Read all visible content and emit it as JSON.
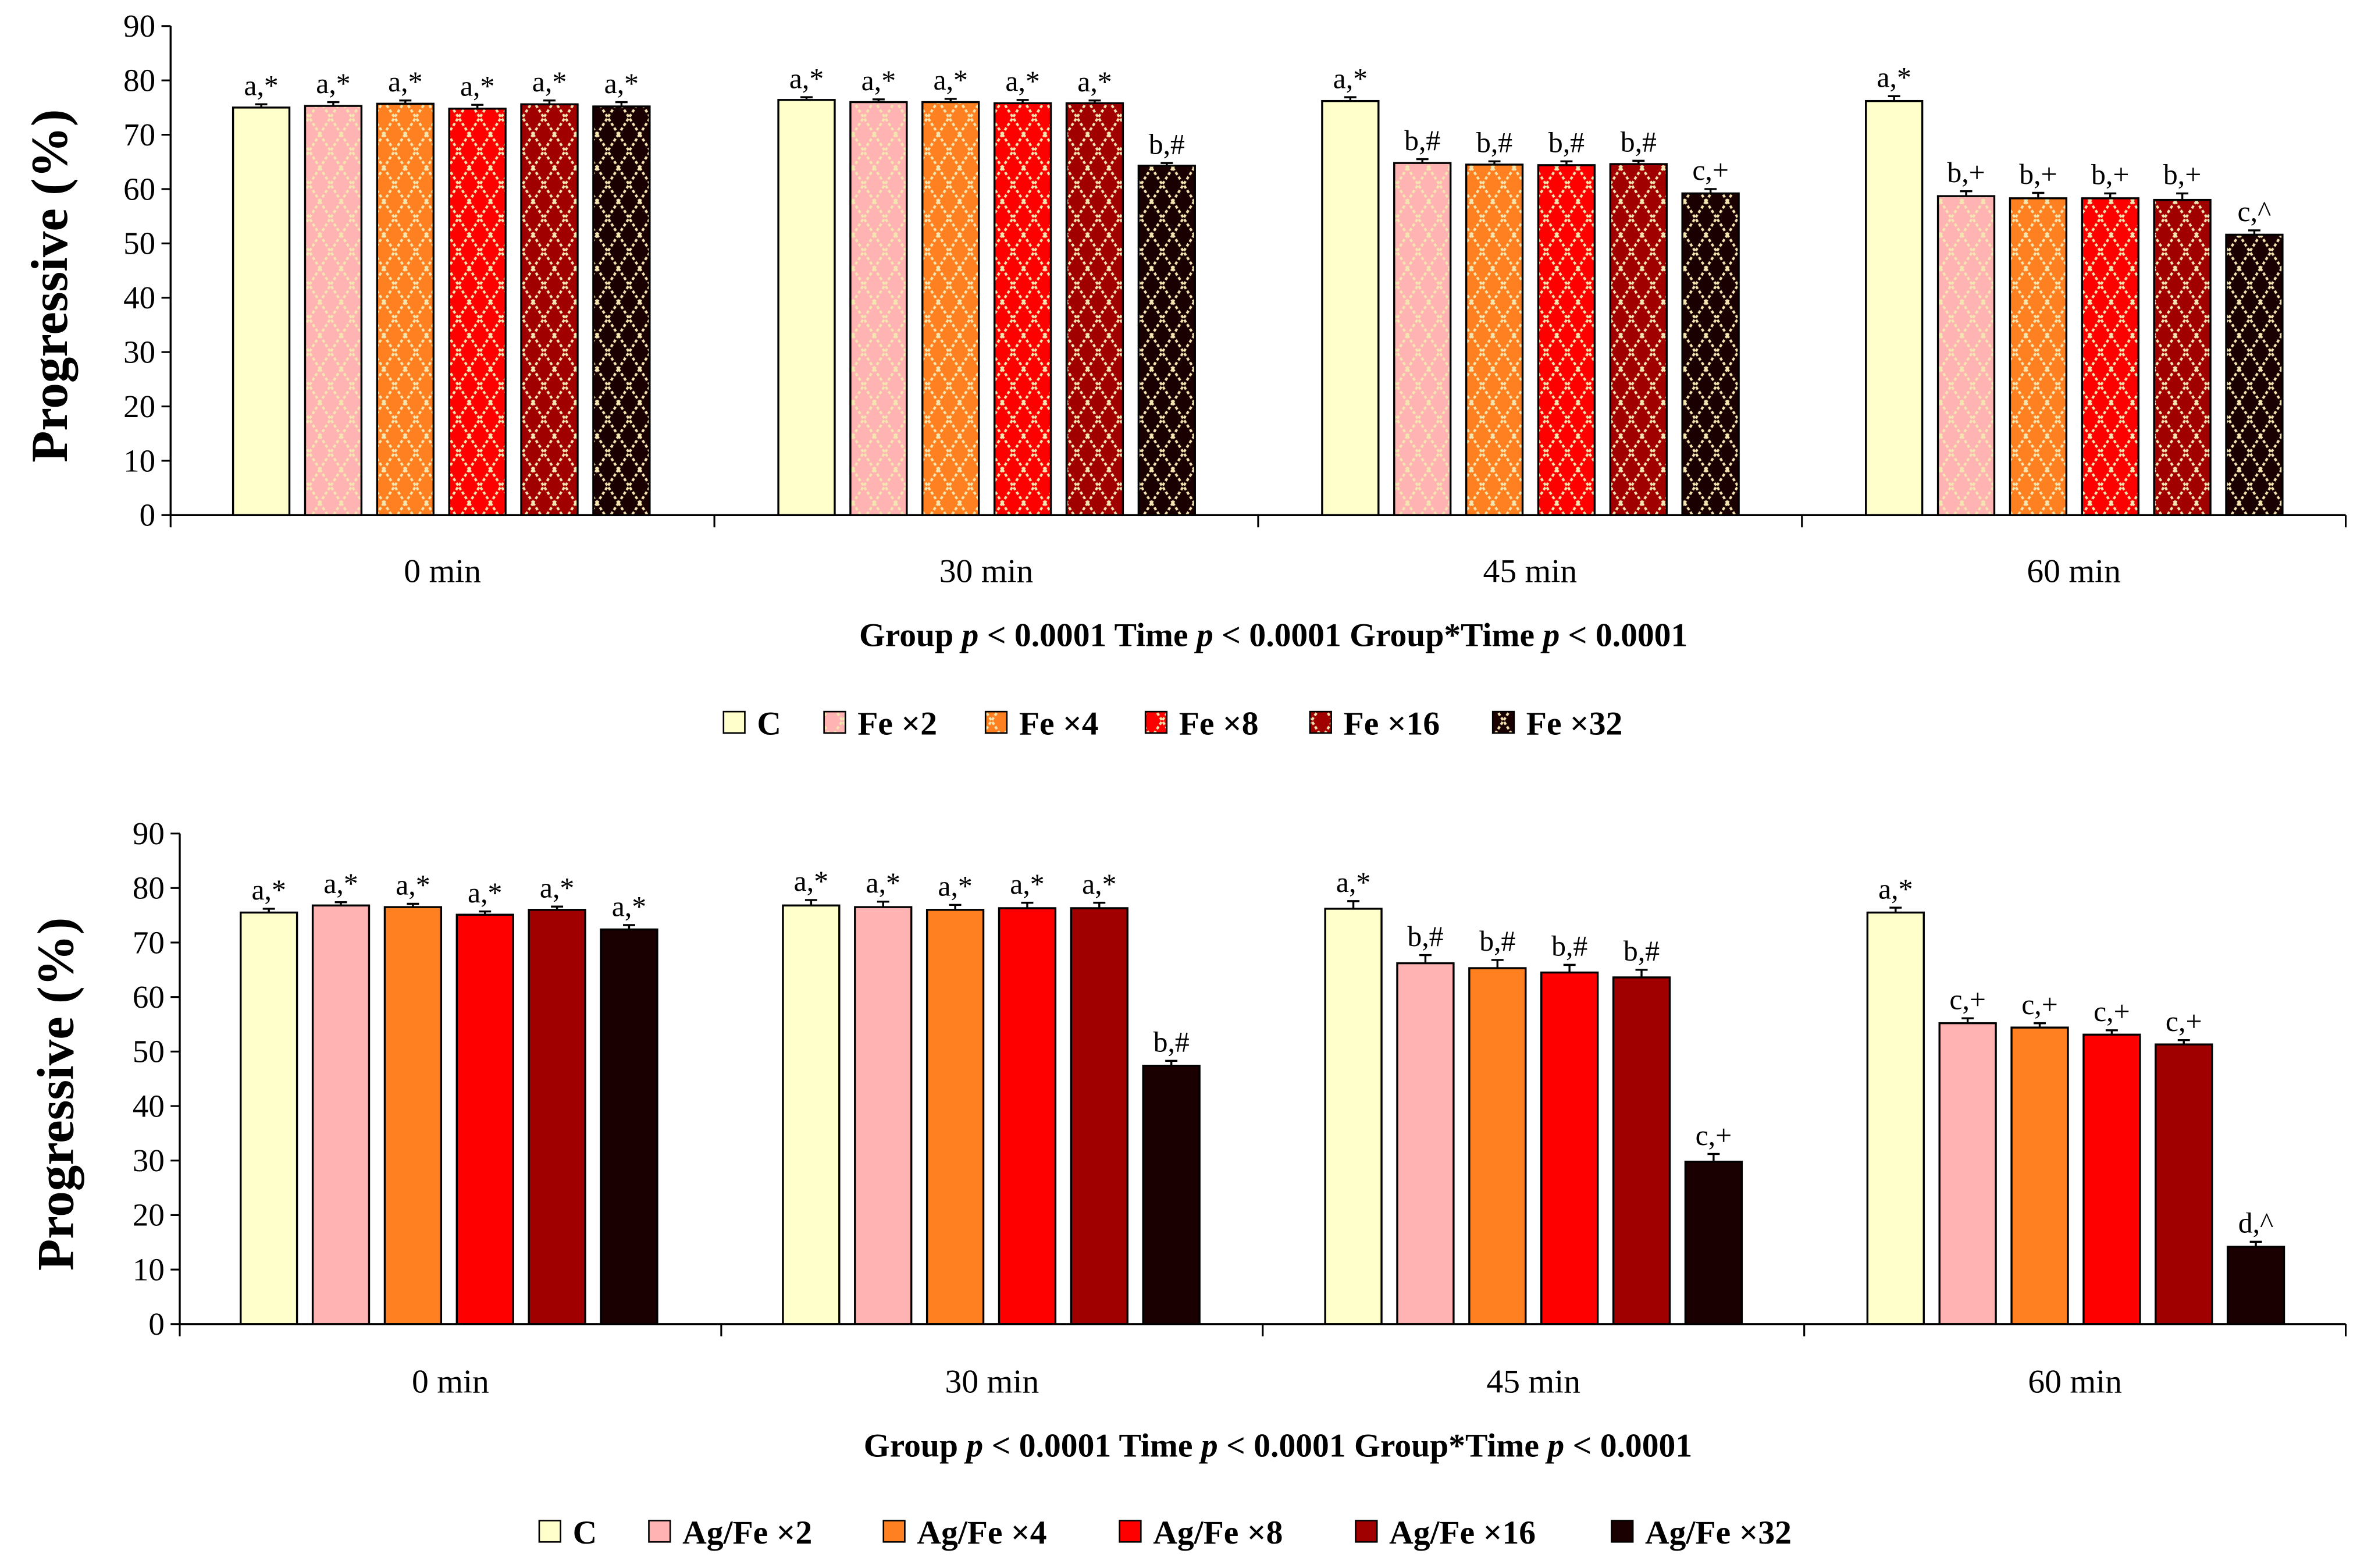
{
  "chart_data": [
    {
      "type": "bar",
      "ylabel": "Progressive (%)",
      "ylim": [
        0,
        90
      ],
      "yticks": [
        0,
        10,
        20,
        30,
        40,
        50,
        60,
        70,
        80,
        90
      ],
      "categories": [
        "0 min",
        "30 min",
        "45 min",
        "60 min"
      ],
      "footnote": "Group p < 0.0001 Time p < 0.0001 Group*Time p < 0.0001",
      "patterned": true,
      "legend_position": "bottom",
      "series": [
        {
          "name": "C",
          "color": "#ffffcc",
          "values": [
            75.0,
            76.4,
            76.2,
            76.2
          ],
          "errors": [
            0.6,
            0.5,
            0.7,
            0.9
          ],
          "labels": [
            "a,*",
            "a,*",
            "a,*",
            "a,*"
          ]
        },
        {
          "name": "Fe ×2",
          "color": "#ffb3b3",
          "values": [
            75.3,
            76.0,
            64.8,
            58.7
          ],
          "errors": [
            0.7,
            0.5,
            0.7,
            0.9
          ],
          "labels": [
            "a,*",
            "a,*",
            "b,#",
            "b,+"
          ]
        },
        {
          "name": "Fe ×4",
          "color": "#ff8020",
          "values": [
            75.7,
            76.0,
            64.5,
            58.3
          ],
          "errors": [
            0.6,
            0.6,
            0.6,
            1.0
          ],
          "labels": [
            "a,*",
            "a,*",
            "b,#",
            "b,+"
          ]
        },
        {
          "name": "Fe ×8",
          "color": "#ff0000",
          "values": [
            74.8,
            75.8,
            64.4,
            58.3
          ],
          "errors": [
            0.7,
            0.6,
            0.7,
            0.9
          ],
          "labels": [
            "a,*",
            "a,*",
            "b,#",
            "b,+"
          ]
        },
        {
          "name": "Fe ×16",
          "color": "#a00000",
          "values": [
            75.6,
            75.8,
            64.6,
            58.0
          ],
          "errors": [
            0.7,
            0.5,
            0.6,
            1.2
          ],
          "labels": [
            "a,*",
            "a,*",
            "b,#",
            "b,+"
          ]
        },
        {
          "name": "Fe ×32",
          "color": "#1a0000",
          "values": [
            75.2,
            64.3,
            59.2,
            51.6
          ],
          "errors": [
            0.8,
            0.5,
            0.8,
            0.8
          ],
          "labels": [
            "a,*",
            "b,#",
            "c,+",
            "c,^"
          ]
        }
      ]
    },
    {
      "type": "bar",
      "ylabel": "Progressive (%)",
      "ylim": [
        0,
        90
      ],
      "yticks": [
        0,
        10,
        20,
        30,
        40,
        50,
        60,
        70,
        80,
        90
      ],
      "categories": [
        "0 min",
        "30 min",
        "45 min",
        "60 min"
      ],
      "footnote": "Group p < 0.0001 Time p < 0.0001 Group*Time p < 0.0001",
      "patterned": false,
      "legend_position": "bottom",
      "series": [
        {
          "name": "C",
          "color": "#ffffcc",
          "values": [
            75.5,
            76.8,
            76.2,
            75.5
          ],
          "errors": [
            0.7,
            1.0,
            1.4,
            0.9
          ],
          "labels": [
            "a,*",
            "a,*",
            "a,*",
            "a,*"
          ]
        },
        {
          "name": "Ag/Fe ×2",
          "color": "#ffb3b3",
          "values": [
            76.8,
            76.5,
            66.2,
            55.2
          ],
          "errors": [
            0.6,
            1.0,
            1.5,
            0.9
          ],
          "labels": [
            "a,*",
            "a,*",
            "b,#",
            "c,+"
          ]
        },
        {
          "name": "Ag/Fe ×4",
          "color": "#ff8020",
          "values": [
            76.5,
            76.0,
            65.3,
            54.4
          ],
          "errors": [
            0.6,
            0.9,
            1.5,
            0.8
          ],
          "labels": [
            "a,*",
            "a,*",
            "b,#",
            "c,+"
          ]
        },
        {
          "name": "Ag/Fe ×8",
          "color": "#ff0000",
          "values": [
            75.1,
            76.3,
            64.5,
            53.1
          ],
          "errors": [
            0.6,
            1.0,
            1.4,
            0.8
          ],
          "labels": [
            "a,*",
            "a,*",
            "b,#",
            "c,+"
          ]
        },
        {
          "name": "Ag/Fe ×16",
          "color": "#a00000",
          "values": [
            76.0,
            76.3,
            63.6,
            51.3
          ],
          "errors": [
            0.6,
            1.0,
            1.4,
            0.8
          ],
          "labels": [
            "a,*",
            "a,*",
            "b,#",
            "c,+"
          ]
        },
        {
          "name": "Ag/Fe ×32",
          "color": "#1a0000",
          "values": [
            72.4,
            47.4,
            29.8,
            14.2
          ],
          "errors": [
            0.8,
            0.9,
            1.4,
            0.9
          ],
          "labels": [
            "a,*",
            "b,#",
            "c,+",
            "d,^"
          ]
        }
      ]
    }
  ]
}
